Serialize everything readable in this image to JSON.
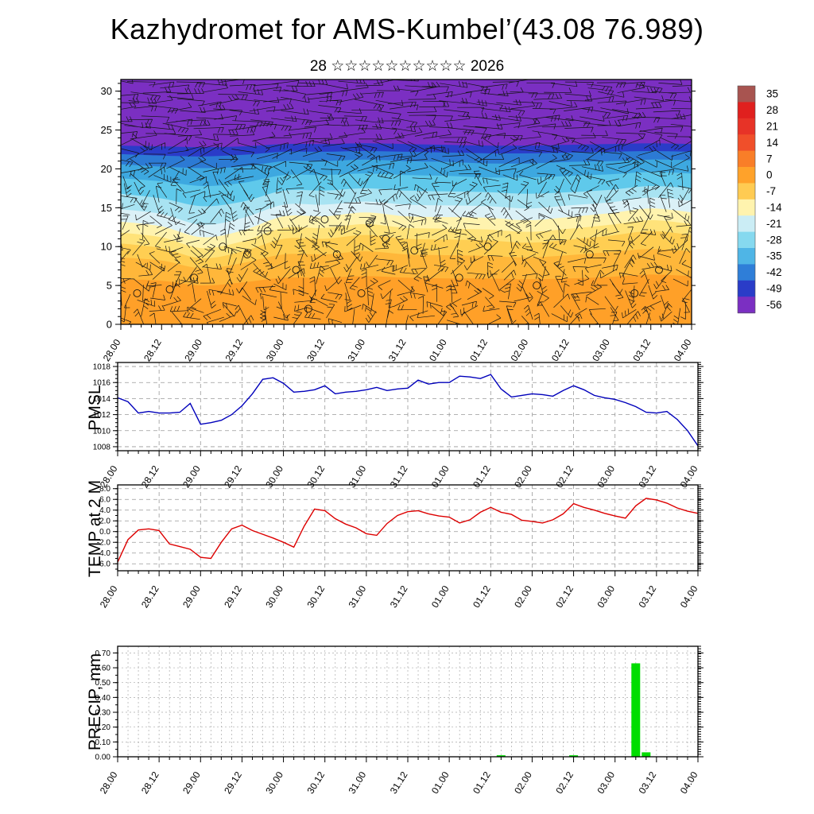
{
  "title": "Kazhydromet for AMS-Kumbel’(43.08 76.989)",
  "subtitle": "28 ☆☆☆☆☆☆☆☆☆☆ 2026",
  "time_axis": {
    "labels": [
      "28.00",
      "28.12",
      "29.00",
      "29.12",
      "30.00",
      "30.12",
      "31.00",
      "31.12",
      "01.00",
      "01.12",
      "02.00",
      "02.12",
      "03.00",
      "03.12",
      "04.00"
    ],
    "minor_step_hours": 3,
    "major_step_hours": 12
  },
  "chart_data": [
    {
      "id": "cross_section",
      "type": "heatmap",
      "title": "Temperature cross-section with wind barbs",
      "ylabel": "",
      "ylim": [
        0,
        31.5
      ],
      "yticks": [
        0,
        5,
        10,
        15,
        20,
        25,
        30
      ],
      "ytick_labels": [
        "0",
        "5",
        "10",
        "15",
        "20",
        "25",
        "30"
      ],
      "legend_position": "right",
      "colorbar": {
        "values": [
          "35",
          "28",
          "21",
          "14",
          "7",
          "0",
          "-7",
          "-14",
          "-21",
          "-28",
          "-35",
          "-42",
          "-49",
          "-56"
        ],
        "colors": [
          "#A85450",
          "#E0201E",
          "#E73327",
          "#F04F2A",
          "#F97E28",
          "#FFA22A",
          "#FFCB52",
          "#FFF3AE",
          "#CBEDF5",
          "#86D9EF",
          "#4FB5E6",
          "#2F7ED8",
          "#2A3CC8",
          "#7B2FC2"
        ]
      },
      "layers": [
        {
          "name": "purple_-56",
          "color": "#7B2FC2",
          "top_km": [
            31.5,
            31.5,
            31.5,
            31.5,
            31.5,
            31.5,
            31.5,
            31.5,
            31.5,
            31.5,
            31.5,
            31.5,
            31.5,
            31.5,
            31.5
          ]
        },
        {
          "name": "indigo_-49",
          "color": "#2A3CC8",
          "top_km": [
            23.0,
            22.9,
            22.8,
            22.9,
            23.2,
            23.2,
            23.3,
            23.2,
            23.1,
            23.0,
            23.0,
            23.1,
            23.2,
            23.3,
            23.2
          ]
        },
        {
          "name": "blue_-42",
          "color": "#2C7AD4",
          "top_km": [
            21.9,
            21.7,
            21.6,
            21.8,
            22.2,
            22.2,
            22.3,
            22.2,
            22.1,
            22.0,
            22.0,
            22.1,
            22.2,
            22.3,
            22.2
          ]
        },
        {
          "name": "skyblue_-35",
          "color": "#3DA8E0",
          "top_km": [
            20.6,
            20.3,
            20.1,
            20.3,
            21.0,
            21.0,
            21.2,
            21.0,
            20.9,
            20.7,
            20.7,
            20.9,
            21.0,
            21.2,
            21.1
          ]
        },
        {
          "name": "cyan_-28",
          "color": "#5FC9EB",
          "top_km": [
            18.8,
            18.4,
            17.8,
            18.2,
            19.2,
            19.2,
            19.4,
            19.2,
            19.1,
            18.9,
            18.9,
            19.1,
            19.3,
            19.6,
            19.4
          ]
        },
        {
          "name": "lightcyan_-21",
          "color": "#A8E3F2",
          "top_km": [
            16.8,
            16.2,
            15.2,
            15.8,
            17.2,
            17.2,
            17.5,
            17.2,
            17.1,
            17.0,
            16.8,
            17.0,
            17.3,
            17.8,
            17.5
          ]
        },
        {
          "name": "palecyan_-18",
          "color": "#DBF1F7",
          "top_km": [
            14.8,
            14.2,
            12.8,
            13.7,
            15.4,
            15.4,
            15.8,
            15.4,
            15.3,
            15.2,
            14.9,
            15.3,
            15.7,
            16.3,
            15.9
          ]
        },
        {
          "name": "paleyellow_-14",
          "color": "#FFF3AE",
          "top_km": [
            13.2,
            12.6,
            11.2,
            12.1,
            13.9,
            13.9,
            14.4,
            13.9,
            13.8,
            13.7,
            13.4,
            13.8,
            14.3,
            14.9,
            14.4
          ]
        },
        {
          "name": "yellow_-10",
          "color": "#FFE37A",
          "top_km": [
            11.8,
            11.2,
            9.8,
            10.7,
            12.4,
            12.4,
            12.9,
            12.4,
            12.3,
            12.2,
            11.9,
            12.3,
            12.8,
            13.4,
            12.9
          ]
        },
        {
          "name": "amber_-7",
          "color": "#FFCE52",
          "top_km": [
            10.4,
            9.8,
            8.5,
            9.4,
            11.0,
            11.0,
            11.5,
            11.0,
            10.9,
            10.8,
            10.5,
            10.9,
            11.4,
            12.0,
            11.5
          ]
        },
        {
          "name": "orange_-3",
          "color": "#FFB73A",
          "top_km": [
            8.6,
            8.2,
            7.2,
            7.9,
            9.0,
            9.0,
            9.4,
            9.0,
            8.9,
            8.8,
            8.6,
            8.9,
            9.3,
            9.7,
            9.4
          ]
        },
        {
          "name": "deeporange_0",
          "color": "#FFA028",
          "top_km": [
            5.8,
            5.6,
            5.0,
            5.4,
            6.0,
            6.0,
            6.2,
            6.0,
            5.9,
            5.9,
            5.8,
            5.9,
            6.1,
            6.4,
            6.2
          ]
        }
      ],
      "calm_circles": [
        [
          0.4,
          4.0
        ],
        [
          1.2,
          4.5
        ],
        [
          1.8,
          6.0
        ],
        [
          2.5,
          10.0
        ],
        [
          3.1,
          9.0
        ],
        [
          3.6,
          12.0
        ],
        [
          4.3,
          7.0
        ],
        [
          4.6,
          2.0
        ],
        [
          5.0,
          13.5
        ],
        [
          5.3,
          9.0
        ],
        [
          5.9,
          4.0
        ],
        [
          6.1,
          13.0
        ],
        [
          6.5,
          11.0
        ],
        [
          7.2,
          9.5
        ],
        [
          8.3,
          6.0
        ],
        [
          9.0,
          10.0
        ],
        [
          10.2,
          5.0
        ],
        [
          11.5,
          9.0
        ],
        [
          12.6,
          4.0
        ],
        [
          13.2,
          7.0
        ]
      ]
    },
    {
      "id": "pmsl",
      "type": "line",
      "ylabel": "PMSL",
      "color": "#0000bb",
      "ylim": [
        1007.5,
        1018.5
      ],
      "yticks": [
        1008,
        1010,
        1012,
        1014,
        1016,
        1018
      ],
      "ytick_labels": [
        "1008",
        "1010",
        "1012",
        "1014",
        "1016",
        "1018"
      ],
      "yminor": 0.5,
      "vgrid_step": 1,
      "x_step_ticks": 0.25,
      "values": [
        1014.1,
        1013.6,
        1012.2,
        1012.4,
        1012.2,
        1012.2,
        1012.3,
        1013.4,
        1010.8,
        1011.0,
        1011.3,
        1012.0,
        1013.1,
        1014.6,
        1016.4,
        1016.6,
        1015.9,
        1014.8,
        1014.9,
        1015.1,
        1015.6,
        1014.6,
        1014.8,
        1014.9,
        1015.1,
        1015.4,
        1015.0,
        1015.2,
        1015.3,
        1016.3,
        1015.8,
        1016.0,
        1016.0,
        1016.8,
        1016.7,
        1016.5,
        1017.0,
        1015.2,
        1014.2,
        1014.4,
        1014.6,
        1014.5,
        1014.3,
        1015.0,
        1015.6,
        1015.1,
        1014.4,
        1014.1,
        1013.9,
        1013.5,
        1013.0,
        1012.3,
        1012.2,
        1012.4,
        1011.4,
        1010.0,
        1008.1
      ]
    },
    {
      "id": "temp2m",
      "type": "line",
      "ylabel": "TEMP at 2 M",
      "color": "#dd0000",
      "ylim": [
        -7.3,
        8.7
      ],
      "yticks": [
        8,
        6,
        4,
        2,
        0,
        -2,
        -4,
        -6
      ],
      "ytick_labels": [
        "8.0",
        "6.0",
        "4.0",
        "2.0",
        "0.0",
        "-2.0",
        "-4.0",
        "-6.0"
      ],
      "yminor": 1,
      "vgrid_step": 1,
      "x_step_ticks": 0.25,
      "values": [
        -5.7,
        -1.5,
        0.3,
        0.5,
        0.2,
        -2.3,
        -2.8,
        -3.3,
        -4.8,
        -5.0,
        -2.0,
        0.5,
        1.2,
        0.2,
        -0.5,
        -1.2,
        -2.0,
        -2.9,
        1.0,
        4.2,
        3.9,
        2.4,
        1.4,
        0.7,
        -0.4,
        -0.7,
        1.5,
        3.0,
        3.7,
        3.9,
        3.3,
        2.9,
        2.7,
        1.6,
        2.2,
        3.6,
        4.5,
        3.6,
        3.2,
        2.1,
        1.9,
        1.6,
        2.2,
        3.3,
        5.2,
        4.5,
        4.0,
        3.4,
        2.9,
        2.5,
        4.8,
        6.2,
        5.9,
        5.3,
        4.4,
        3.8,
        3.4
      ]
    },
    {
      "id": "precip",
      "type": "bar",
      "ylabel": "PRECIP, mm",
      "color": "#00dd00",
      "ylim": [
        0,
        0.745
      ],
      "yticks": [
        0.0,
        0.1,
        0.2,
        0.3,
        0.4,
        0.5,
        0.6,
        0.7
      ],
      "ytick_labels": [
        "0.00",
        "0.10",
        "0.20",
        "0.30",
        "0.40",
        "0.50",
        "0.60",
        "0.70"
      ],
      "yminor": 0.05,
      "vgrid_step": 0.25,
      "x_step_ticks": 0.25,
      "values": [
        0,
        0,
        0,
        0,
        0,
        0,
        0,
        0,
        0,
        0,
        0,
        0,
        0,
        0,
        0,
        0,
        0,
        0,
        0,
        0,
        0,
        0,
        0,
        0,
        0,
        0,
        0,
        0,
        0,
        0,
        0,
        0,
        0,
        0,
        0,
        0,
        0,
        0.01,
        0,
        0,
        0,
        0,
        0,
        0,
        0.01,
        0,
        0,
        0,
        0,
        0,
        0.63,
        0.03,
        0,
        0,
        0,
        0,
        0
      ]
    }
  ]
}
